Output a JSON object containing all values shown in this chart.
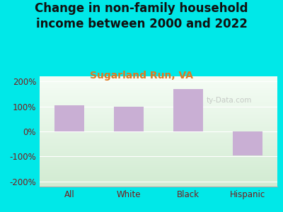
{
  "title": "Change in non-family household\nincome between 2000 and 2022",
  "subtitle": "Sugarland Run, VA",
  "categories": [
    "All",
    "White",
    "Black",
    "Hispanic"
  ],
  "values": [
    105,
    100,
    170,
    -95
  ],
  "bar_color": "#c9afd4",
  "title_fontsize": 12,
  "subtitle_fontsize": 10,
  "subtitle_color": "#e07820",
  "title_color": "#111111",
  "background_color": "#00e8e8",
  "ylim": [
    -220,
    220
  ],
  "yticks": [
    -200,
    -100,
    0,
    100,
    200
  ],
  "ytick_labels": [
    "-200%",
    "-100%",
    "0%",
    "100%",
    "200%"
  ],
  "tick_color": "#7a1a1a",
  "axis_label_color": "#7a1a1a",
  "watermark": "ty-Data.com"
}
